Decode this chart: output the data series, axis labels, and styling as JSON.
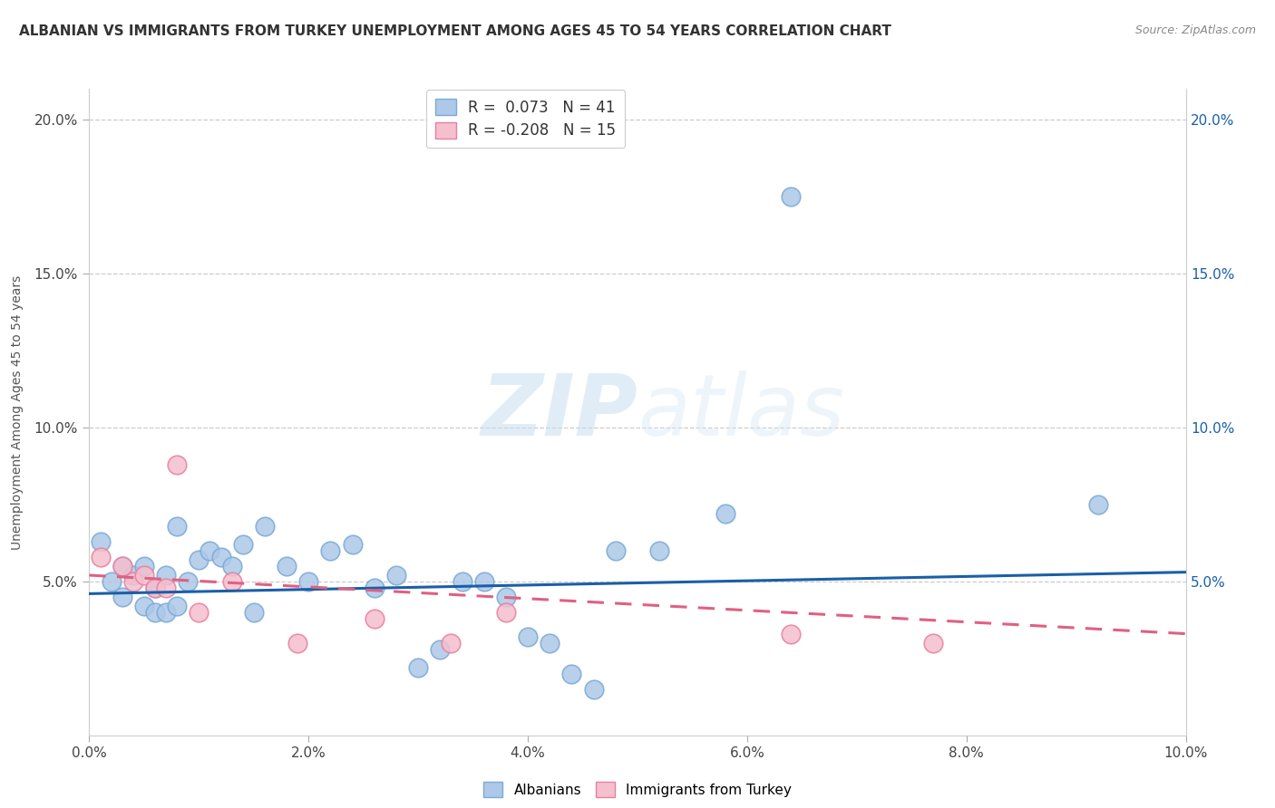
{
  "title": "ALBANIAN VS IMMIGRANTS FROM TURKEY UNEMPLOYMENT AMONG AGES 45 TO 54 YEARS CORRELATION CHART",
  "source": "Source: ZipAtlas.com",
  "xlabel": "",
  "ylabel": "Unemployment Among Ages 45 to 54 years",
  "xlim": [
    0.0,
    0.1
  ],
  "ylim": [
    0.0,
    0.21
  ],
  "xticks": [
    0.0,
    0.02,
    0.04,
    0.06,
    0.08,
    0.1
  ],
  "yticks_left": [
    0.05,
    0.1,
    0.15,
    0.2
  ],
  "yticks_right": [
    0.05,
    0.1,
    0.15,
    0.2
  ],
  "watermark_zip": "ZIP",
  "watermark_atlas": "atlas",
  "legend1_label": "R =  0.073   N = 41",
  "legend2_label": "R = -0.208   N = 15",
  "albanian_color": "#adc8e8",
  "albanian_edge": "#7aaad4",
  "turkey_color": "#f5bfce",
  "turkey_edge": "#e8809e",
  "line1_color": "#1a5fa8",
  "line2_color": "#e06080",
  "albanian_x": [
    0.001,
    0.002,
    0.003,
    0.003,
    0.004,
    0.005,
    0.005,
    0.006,
    0.006,
    0.007,
    0.007,
    0.008,
    0.008,
    0.009,
    0.01,
    0.011,
    0.012,
    0.013,
    0.014,
    0.015,
    0.016,
    0.018,
    0.02,
    0.022,
    0.024,
    0.026,
    0.028,
    0.03,
    0.032,
    0.034,
    0.036,
    0.038,
    0.04,
    0.042,
    0.044,
    0.046,
    0.048,
    0.052,
    0.058,
    0.064,
    0.092
  ],
  "albanian_y": [
    0.063,
    0.05,
    0.055,
    0.045,
    0.052,
    0.055,
    0.042,
    0.048,
    0.04,
    0.052,
    0.04,
    0.042,
    0.068,
    0.05,
    0.057,
    0.06,
    0.058,
    0.055,
    0.062,
    0.04,
    0.068,
    0.055,
    0.05,
    0.06,
    0.062,
    0.048,
    0.052,
    0.022,
    0.028,
    0.05,
    0.05,
    0.045,
    0.032,
    0.03,
    0.02,
    0.015,
    0.06,
    0.06,
    0.072,
    0.175,
    0.075
  ],
  "turkey_x": [
    0.001,
    0.003,
    0.004,
    0.005,
    0.006,
    0.007,
    0.008,
    0.01,
    0.013,
    0.019,
    0.026,
    0.033,
    0.038,
    0.064,
    0.077
  ],
  "turkey_y": [
    0.058,
    0.055,
    0.05,
    0.052,
    0.048,
    0.048,
    0.088,
    0.04,
    0.05,
    0.03,
    0.038,
    0.03,
    0.04,
    0.033,
    0.03
  ],
  "alb_trend_x": [
    0.0,
    0.1
  ],
  "alb_trend_y": [
    0.046,
    0.053
  ],
  "tur_trend_x": [
    0.0,
    0.1
  ],
  "tur_trend_y": [
    0.052,
    0.033
  ]
}
